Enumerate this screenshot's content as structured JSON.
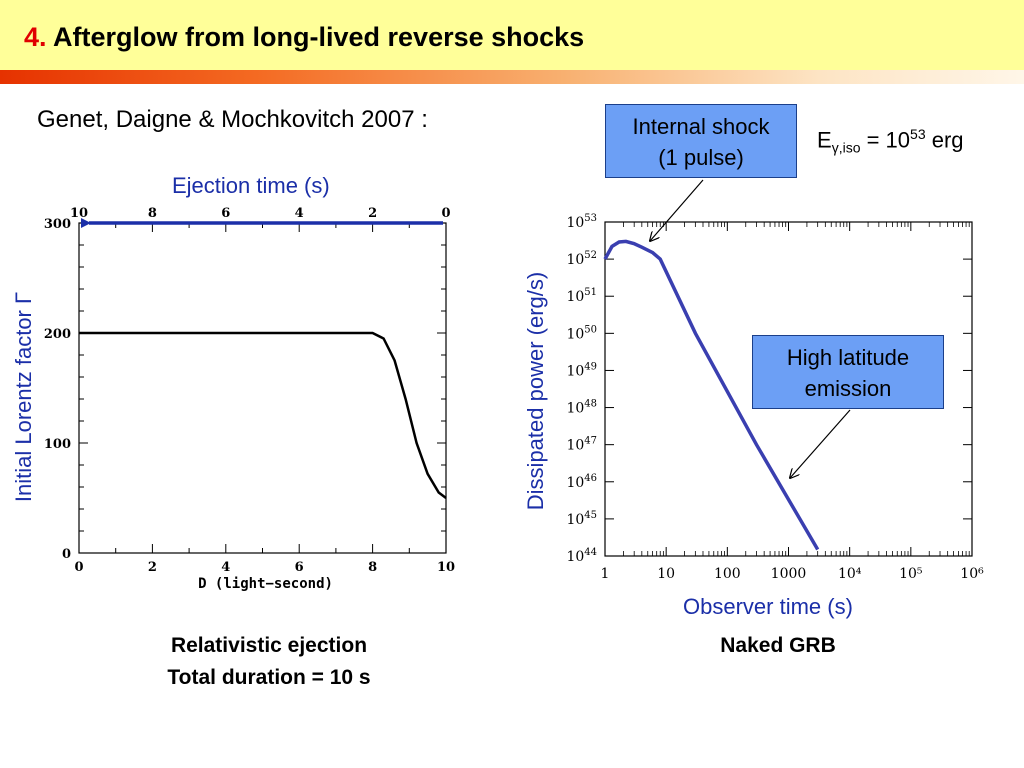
{
  "header": {
    "number": "4.",
    "title": "Afterglow from long-lived reverse shocks"
  },
  "reference": "Genet, Daigne & Mochkovitch 2007 :",
  "energy": {
    "base": "E",
    "sub": "γ,iso",
    "eq": " = 10",
    "exp": "53",
    "unit": " erg"
  },
  "callouts": {
    "internal_shock": [
      "Internal shock",
      "(1 pulse)"
    ],
    "high_latitude": [
      "High latitude",
      "emission"
    ]
  },
  "left_plot": {
    "top_axis_label": "Ejection time (s)",
    "y_label": "Initial Lorentz factor Γ",
    "caption": [
      "Relativistic ejection",
      "Total duration = 10 s"
    ]
  },
  "right_plot": {
    "x_label": "Observer time (s)",
    "y_label": "Dissipated power (erg/s)",
    "caption": "Naked GRB"
  },
  "chart_data": [
    {
      "type": "line",
      "xlabel": "D (light−second)",
      "ylabel": "",
      "x_ticks": [
        "0",
        "2",
        "4",
        "6",
        "8",
        "10"
      ],
      "y_ticks": [
        "0",
        "100",
        "200",
        "300"
      ],
      "top_ticks": [
        "10",
        "8",
        "6",
        "4",
        "2",
        "0"
      ],
      "xlim": [
        0,
        10
      ],
      "ylim": [
        0,
        300
      ],
      "series": [
        {
          "x": [
            0,
            4,
            8.0,
            8.3,
            8.6,
            8.9,
            9.2,
            9.5,
            9.8,
            10
          ],
          "y": [
            200,
            200,
            200,
            195,
            175,
            140,
            100,
            72,
            55,
            50
          ]
        }
      ],
      "arrow": {
        "from_x": 0,
        "to_x": 10,
        "y": 300
      }
    },
    {
      "type": "line",
      "xscale": "log",
      "yscale": "log",
      "xlim": [
        1,
        1000000
      ],
      "ylim": [
        1e+44,
        1e+53
      ],
      "x_ticks": [
        "1",
        "10",
        "100",
        "1000",
        "10⁴",
        "10⁵",
        "10⁶"
      ],
      "y_tick_exponents": [
        "44",
        "45",
        "46",
        "47",
        "48",
        "49",
        "50",
        "51",
        "52",
        "53"
      ],
      "series": [
        {
          "x": [
            1,
            1.3,
            1.7,
            2.2,
            3,
            4,
            6,
            8,
            30,
            300,
            3000
          ],
          "y": [
            1e+52,
            2.2e+52,
            2.9e+52,
            3e+52,
            2.6e+52,
            2.1e+52,
            1.5e+52,
            1e+52,
            1e+50,
            1e+47,
            1.5e+44
          ]
        }
      ]
    }
  ]
}
